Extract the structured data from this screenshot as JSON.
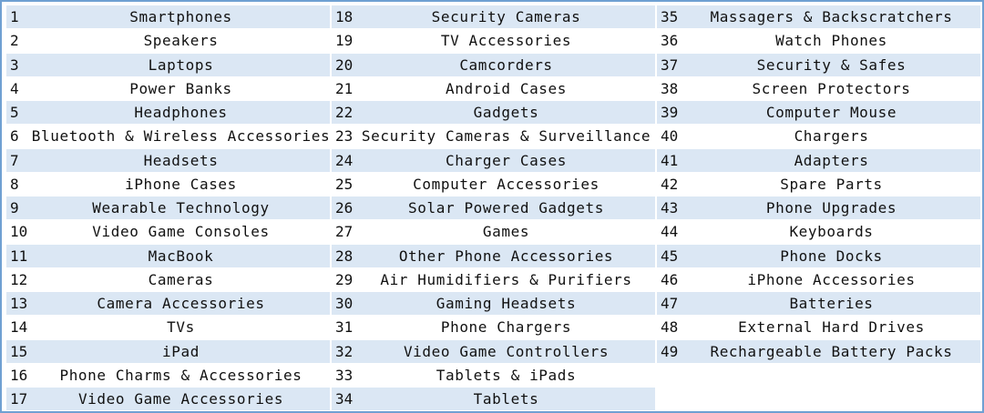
{
  "columns": [
    [
      {
        "num": "1",
        "name": "Smartphones"
      },
      {
        "num": "2",
        "name": "Speakers"
      },
      {
        "num": "3",
        "name": "Laptops"
      },
      {
        "num": "4",
        "name": "Power Banks"
      },
      {
        "num": "5",
        "name": "Headphones"
      },
      {
        "num": "6",
        "name": "Bluetooth & Wireless Accessories"
      },
      {
        "num": "7",
        "name": "Headsets"
      },
      {
        "num": "8",
        "name": "iPhone Cases"
      },
      {
        "num": "9",
        "name": "Wearable Technology"
      },
      {
        "num": "10",
        "name": "Video Game Consoles"
      },
      {
        "num": "11",
        "name": "MacBook"
      },
      {
        "num": "12",
        "name": "Cameras"
      },
      {
        "num": "13",
        "name": "Camera Accessories"
      },
      {
        "num": "14",
        "name": "TVs"
      },
      {
        "num": "15",
        "name": "iPad"
      },
      {
        "num": "16",
        "name": "Phone Charms & Accessories"
      },
      {
        "num": "17",
        "name": "Video Game Accessories"
      }
    ],
    [
      {
        "num": "18",
        "name": "Security Cameras"
      },
      {
        "num": "19",
        "name": "TV Accessories"
      },
      {
        "num": "20",
        "name": "Camcorders"
      },
      {
        "num": "21",
        "name": "Android Cases"
      },
      {
        "num": "22",
        "name": "Gadgets"
      },
      {
        "num": "23",
        "name": "Security Cameras & Surveillance"
      },
      {
        "num": "24",
        "name": "Charger Cases"
      },
      {
        "num": "25",
        "name": "Computer Accessories"
      },
      {
        "num": "26",
        "name": "Solar Powered Gadgets"
      },
      {
        "num": "27",
        "name": "Games"
      },
      {
        "num": "28",
        "name": "Other Phone Accessories"
      },
      {
        "num": "29",
        "name": "Air Humidifiers & Purifiers"
      },
      {
        "num": "30",
        "name": "Gaming Headsets"
      },
      {
        "num": "31",
        "name": "Phone Chargers"
      },
      {
        "num": "32",
        "name": "Video Game Controllers"
      },
      {
        "num": "33",
        "name": "Tablets & iPads"
      },
      {
        "num": "34",
        "name": "Tablets"
      }
    ],
    [
      {
        "num": "35",
        "name": "Massagers & Backscratchers"
      },
      {
        "num": "36",
        "name": "Watch Phones"
      },
      {
        "num": "37",
        "name": "Security & Safes"
      },
      {
        "num": "38",
        "name": "Screen Protectors"
      },
      {
        "num": "39",
        "name": "Computer Mouse"
      },
      {
        "num": "40",
        "name": "Chargers"
      },
      {
        "num": "41",
        "name": "Adapters"
      },
      {
        "num": "42",
        "name": "Spare Parts"
      },
      {
        "num": "43",
        "name": "Phone Upgrades"
      },
      {
        "num": "44",
        "name": "Keyboards"
      },
      {
        "num": "45",
        "name": "Phone Docks"
      },
      {
        "num": "46",
        "name": "iPhone Accessories"
      },
      {
        "num": "47",
        "name": "Batteries"
      },
      {
        "num": "48",
        "name": "External Hard Drives"
      },
      {
        "num": "49",
        "name": "Rechargeable Battery Packs"
      }
    ]
  ]
}
